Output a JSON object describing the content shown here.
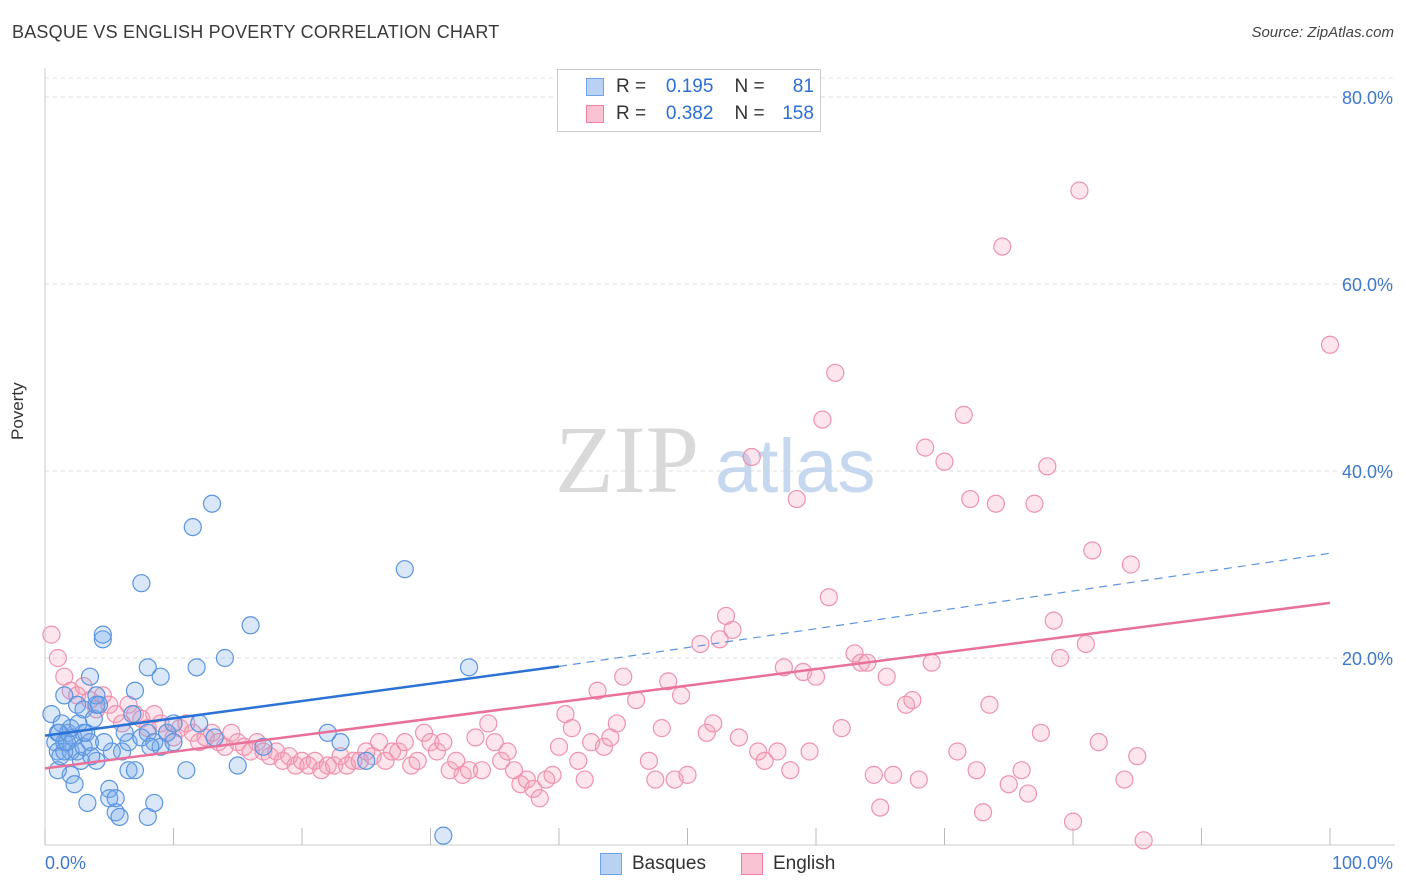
{
  "title": "BASQUE VS ENGLISH POVERTY CORRELATION CHART",
  "source": "Source: ZipAtlas.com",
  "watermark": {
    "zip": "ZIP",
    "atlas": "atlas"
  },
  "legend": {
    "rows": [
      {
        "r_label": "R =",
        "r_value": "0.195",
        "n_label": "N =",
        "n_value": "81",
        "color": "#6fa3e6"
      },
      {
        "r_label": "R =",
        "r_value": "0.382",
        "n_label": "N =",
        "n_value": "158",
        "color": "#f07fa0"
      }
    ]
  },
  "bottom_legend": [
    {
      "label": "Basques",
      "color": "#6fa3e6"
    },
    {
      "label": "English",
      "color": "#f07fa0"
    }
  ],
  "chart_data": {
    "type": "scatter",
    "title": "BASQUE VS ENGLISH POVERTY CORRELATION CHART",
    "xlabel": "",
    "ylabel": "Poverty",
    "xlim": [
      0,
      100
    ],
    "ylim": [
      0,
      80
    ],
    "x_tick_labels": [
      "0.0%",
      "100.0%"
    ],
    "y_ticks": [
      20,
      40,
      60,
      80
    ],
    "y_tick_labels": [
      "20.0%",
      "40.0%",
      "60.0%",
      "80.0%"
    ],
    "series": [
      {
        "name": "Basques",
        "color": "#6fa3e6",
        "trend": {
          "x0": 0,
          "y0": 11.7,
          "x1": 40,
          "y1": 19.1,
          "dashed_to": 100,
          "dashed_y": 31.2
        },
        "points": [
          [
            0.5,
            14
          ],
          [
            0.8,
            11
          ],
          [
            1,
            12
          ],
          [
            1,
            10
          ],
          [
            1.2,
            9.5
          ],
          [
            1.3,
            13
          ],
          [
            1.5,
            11
          ],
          [
            1.5,
            16
          ],
          [
            1.8,
            12
          ],
          [
            2,
            10
          ],
          [
            2,
            7.5
          ],
          [
            2.2,
            11.5
          ],
          [
            2.5,
            10
          ],
          [
            2.5,
            15
          ],
          [
            2.8,
            9
          ],
          [
            3,
            12
          ],
          [
            3,
            10.5
          ],
          [
            3,
            14.5
          ],
          [
            3.3,
            4.5
          ],
          [
            3.5,
            18
          ],
          [
            3.5,
            11
          ],
          [
            3.8,
            13.5
          ],
          [
            4,
            15
          ],
          [
            4,
            16
          ],
          [
            4.2,
            15
          ],
          [
            4.5,
            22
          ],
          [
            4.5,
            22.5
          ],
          [
            5,
            6
          ],
          [
            5,
            5
          ],
          [
            5.5,
            3.5
          ],
          [
            5.5,
            5
          ],
          [
            5.8,
            3
          ],
          [
            6,
            10
          ],
          [
            6.5,
            11
          ],
          [
            6.5,
            8
          ],
          [
            7,
            16.5
          ],
          [
            7,
            8
          ],
          [
            7.5,
            28
          ],
          [
            7.5,
            11.5
          ],
          [
            8,
            12
          ],
          [
            8,
            19
          ],
          [
            8,
            3
          ],
          [
            8.5,
            11
          ],
          [
            8.5,
            4.5
          ],
          [
            9,
            10.5
          ],
          [
            9,
            18
          ],
          [
            9.5,
            12
          ],
          [
            10,
            13
          ],
          [
            10,
            11
          ],
          [
            8.2,
            10.5
          ],
          [
            11,
            8
          ],
          [
            11.5,
            34
          ],
          [
            11.8,
            19
          ],
          [
            12,
            13
          ],
          [
            13,
            36.5
          ],
          [
            13.2,
            11.5
          ],
          [
            14,
            20
          ],
          [
            15,
            8.5
          ],
          [
            16,
            23.5
          ],
          [
            17,
            10.5
          ],
          [
            22,
            12
          ],
          [
            23,
            11
          ],
          [
            25,
            9
          ],
          [
            28,
            29.5
          ],
          [
            31,
            1
          ],
          [
            33,
            19
          ],
          [
            1,
            8
          ],
          [
            2,
            12.5
          ],
          [
            1.5,
            10
          ],
          [
            4,
            9
          ],
          [
            5.2,
            10
          ],
          [
            6.2,
            12
          ],
          [
            2.3,
            6.5
          ],
          [
            3.6,
            9.5
          ],
          [
            4.6,
            11
          ],
          [
            1.1,
            12
          ],
          [
            1.7,
            11
          ],
          [
            2.6,
            13
          ],
          [
            3.2,
            12
          ],
          [
            6.8,
            14
          ]
        ]
      },
      {
        "name": "English",
        "color": "#f07fa0",
        "trend": {
          "x0": 0,
          "y0": 8.2,
          "x1": 100,
          "y1": 25.9
        },
        "points": [
          [
            0.5,
            22.5
          ],
          [
            1,
            20
          ],
          [
            1.5,
            18
          ],
          [
            2,
            16.5
          ],
          [
            2.5,
            16
          ],
          [
            3,
            17
          ],
          [
            3.5,
            15.5
          ],
          [
            4,
            14.5
          ],
          [
            4.5,
            16
          ],
          [
            5,
            15
          ],
          [
            5.5,
            14
          ],
          [
            6,
            13
          ],
          [
            6.5,
            15
          ],
          [
            7,
            14
          ],
          [
            7.5,
            13.5
          ],
          [
            8,
            12.5
          ],
          [
            8.5,
            14
          ],
          [
            9,
            13
          ],
          [
            9.5,
            12
          ],
          [
            10,
            11.5
          ],
          [
            10.5,
            12.5
          ],
          [
            11,
            13
          ],
          [
            11.5,
            12
          ],
          [
            12,
            11
          ],
          [
            12.5,
            11.5
          ],
          [
            13,
            12
          ],
          [
            13.5,
            11
          ],
          [
            14,
            10.5
          ],
          [
            14.5,
            12
          ],
          [
            15,
            11
          ],
          [
            15.5,
            10.5
          ],
          [
            16,
            10
          ],
          [
            16.5,
            11
          ],
          [
            17,
            10
          ],
          [
            17.5,
            9.5
          ],
          [
            18,
            10
          ],
          [
            18.5,
            9
          ],
          [
            19,
            9.5
          ],
          [
            19.5,
            8.5
          ],
          [
            20,
            9
          ],
          [
            20.5,
            8.5
          ],
          [
            21,
            9
          ],
          [
            21.5,
            8
          ],
          [
            22,
            8.5
          ],
          [
            22.5,
            8.5
          ],
          [
            23,
            9.5
          ],
          [
            23.5,
            8.5
          ],
          [
            24,
            9
          ],
          [
            24.5,
            9
          ],
          [
            25,
            10
          ],
          [
            25.5,
            9.5
          ],
          [
            26,
            11
          ],
          [
            26.5,
            9
          ],
          [
            27,
            10
          ],
          [
            27.5,
            10
          ],
          [
            28,
            11
          ],
          [
            28.5,
            8.5
          ],
          [
            29,
            9
          ],
          [
            29.5,
            12
          ],
          [
            30,
            11
          ],
          [
            30.5,
            10
          ],
          [
            31,
            11
          ],
          [
            31.5,
            8
          ],
          [
            32,
            9
          ],
          [
            32.5,
            7.5
          ],
          [
            33,
            8
          ],
          [
            33.5,
            11.5
          ],
          [
            34,
            8
          ],
          [
            34.5,
            13
          ],
          [
            35,
            11
          ],
          [
            35.5,
            9
          ],
          [
            36,
            10
          ],
          [
            36.5,
            8
          ],
          [
            37,
            6.5
          ],
          [
            37.5,
            7
          ],
          [
            38,
            6
          ],
          [
            38.5,
            5
          ],
          [
            39,
            7
          ],
          [
            39.5,
            7.5
          ],
          [
            40,
            10.5
          ],
          [
            40.5,
            14
          ],
          [
            41,
            12.5
          ],
          [
            41.5,
            9
          ],
          [
            42,
            7
          ],
          [
            42.5,
            11
          ],
          [
            43,
            16.5
          ],
          [
            43.5,
            10.5
          ],
          [
            44,
            11.5
          ],
          [
            44.5,
            13
          ],
          [
            45,
            18
          ],
          [
            46,
            15.5
          ],
          [
            47,
            9
          ],
          [
            47.5,
            7
          ],
          [
            48,
            12.5
          ],
          [
            48.5,
            17.5
          ],
          [
            49,
            7
          ],
          [
            49.5,
            16
          ],
          [
            50,
            7.5
          ],
          [
            51,
            21.5
          ],
          [
            51.5,
            12
          ],
          [
            52,
            13
          ],
          [
            52.5,
            22
          ],
          [
            53,
            24.5
          ],
          [
            53.5,
            23
          ],
          [
            54,
            11.5
          ],
          [
            55,
            41.5
          ],
          [
            55.5,
            10
          ],
          [
            56,
            9
          ],
          [
            57,
            10
          ],
          [
            57.5,
            19
          ],
          [
            58,
            8
          ],
          [
            58.5,
            37
          ],
          [
            59,
            18.5
          ],
          [
            59.5,
            10
          ],
          [
            60,
            18
          ],
          [
            60.5,
            45.5
          ],
          [
            61,
            26.5
          ],
          [
            61.5,
            50.5
          ],
          [
            62,
            12.5
          ],
          [
            63,
            20.5
          ],
          [
            63.5,
            19.5
          ],
          [
            64,
            19.5
          ],
          [
            64.5,
            7.5
          ],
          [
            65,
            4
          ],
          [
            65.5,
            18
          ],
          [
            66,
            7.5
          ],
          [
            67,
            15
          ],
          [
            67.5,
            15.5
          ],
          [
            68,
            7
          ],
          [
            68.5,
            42.5
          ],
          [
            69,
            19.5
          ],
          [
            70,
            41
          ],
          [
            71,
            10
          ],
          [
            71.5,
            46
          ],
          [
            72,
            37
          ],
          [
            72.5,
            8
          ],
          [
            73,
            3.5
          ],
          [
            73.5,
            15
          ],
          [
            74,
            36.5
          ],
          [
            74.5,
            64
          ],
          [
            75,
            6.5
          ],
          [
            76,
            8
          ],
          [
            76.5,
            5.5
          ],
          [
            77,
            36.5
          ],
          [
            77.5,
            12
          ],
          [
            78,
            40.5
          ],
          [
            78.5,
            24
          ],
          [
            79,
            20
          ],
          [
            80,
            2.5
          ],
          [
            80.5,
            70
          ],
          [
            81,
            21.5
          ],
          [
            81.5,
            31.5
          ],
          [
            82,
            11
          ],
          [
            84,
            7
          ],
          [
            84.5,
            30
          ],
          [
            85,
            9.5
          ],
          [
            85.5,
            0.5
          ],
          [
            100,
            53.5
          ]
        ]
      }
    ]
  }
}
